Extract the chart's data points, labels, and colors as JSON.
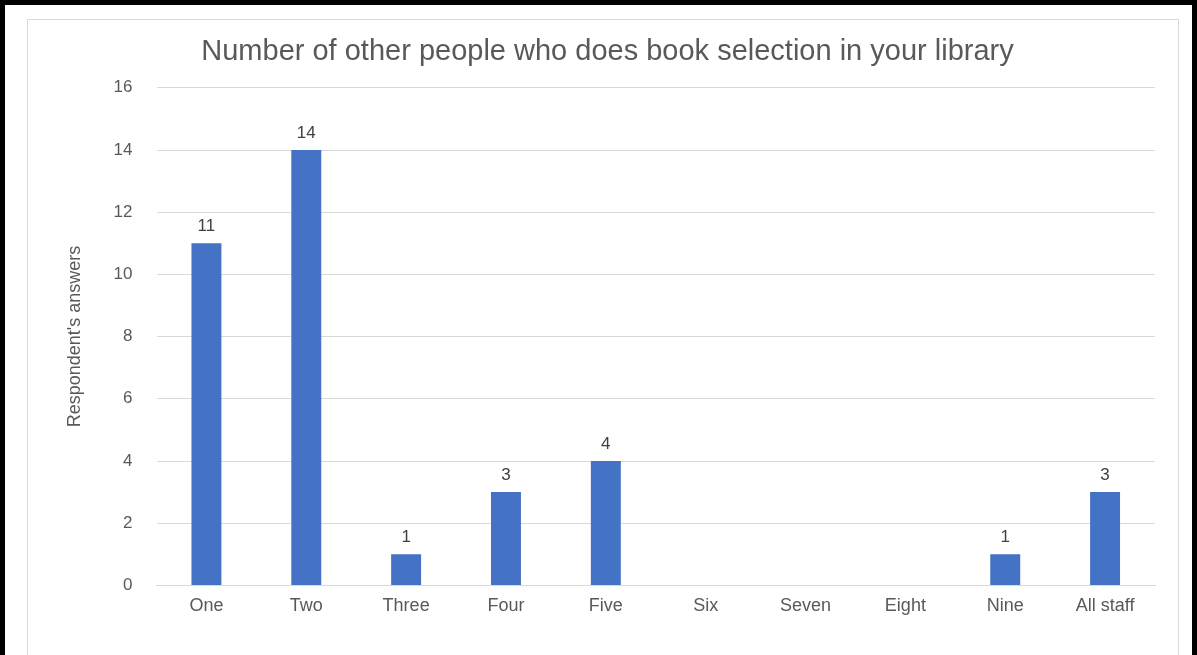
{
  "chart_data": {
    "type": "bar",
    "title": "Number of other people who does book selection in your library",
    "ylabel": "Respondent's answers",
    "categories": [
      "One",
      "Two",
      "Three",
      "Four",
      "Five",
      "Six",
      "Seven",
      "Eight",
      "Nine",
      "All staff"
    ],
    "values": [
      11,
      14,
      1,
      3,
      4,
      0,
      0,
      0,
      1,
      3
    ],
    "value_labels": [
      "11",
      "14",
      "1",
      "3",
      "4",
      null,
      null,
      null,
      "1",
      "3"
    ],
    "color": "#4472c4",
    "ylim": [
      0,
      16
    ],
    "yticks": [
      0,
      2,
      4,
      6,
      8,
      10,
      12,
      14,
      16
    ],
    "grid": "y",
    "legend": false
  }
}
